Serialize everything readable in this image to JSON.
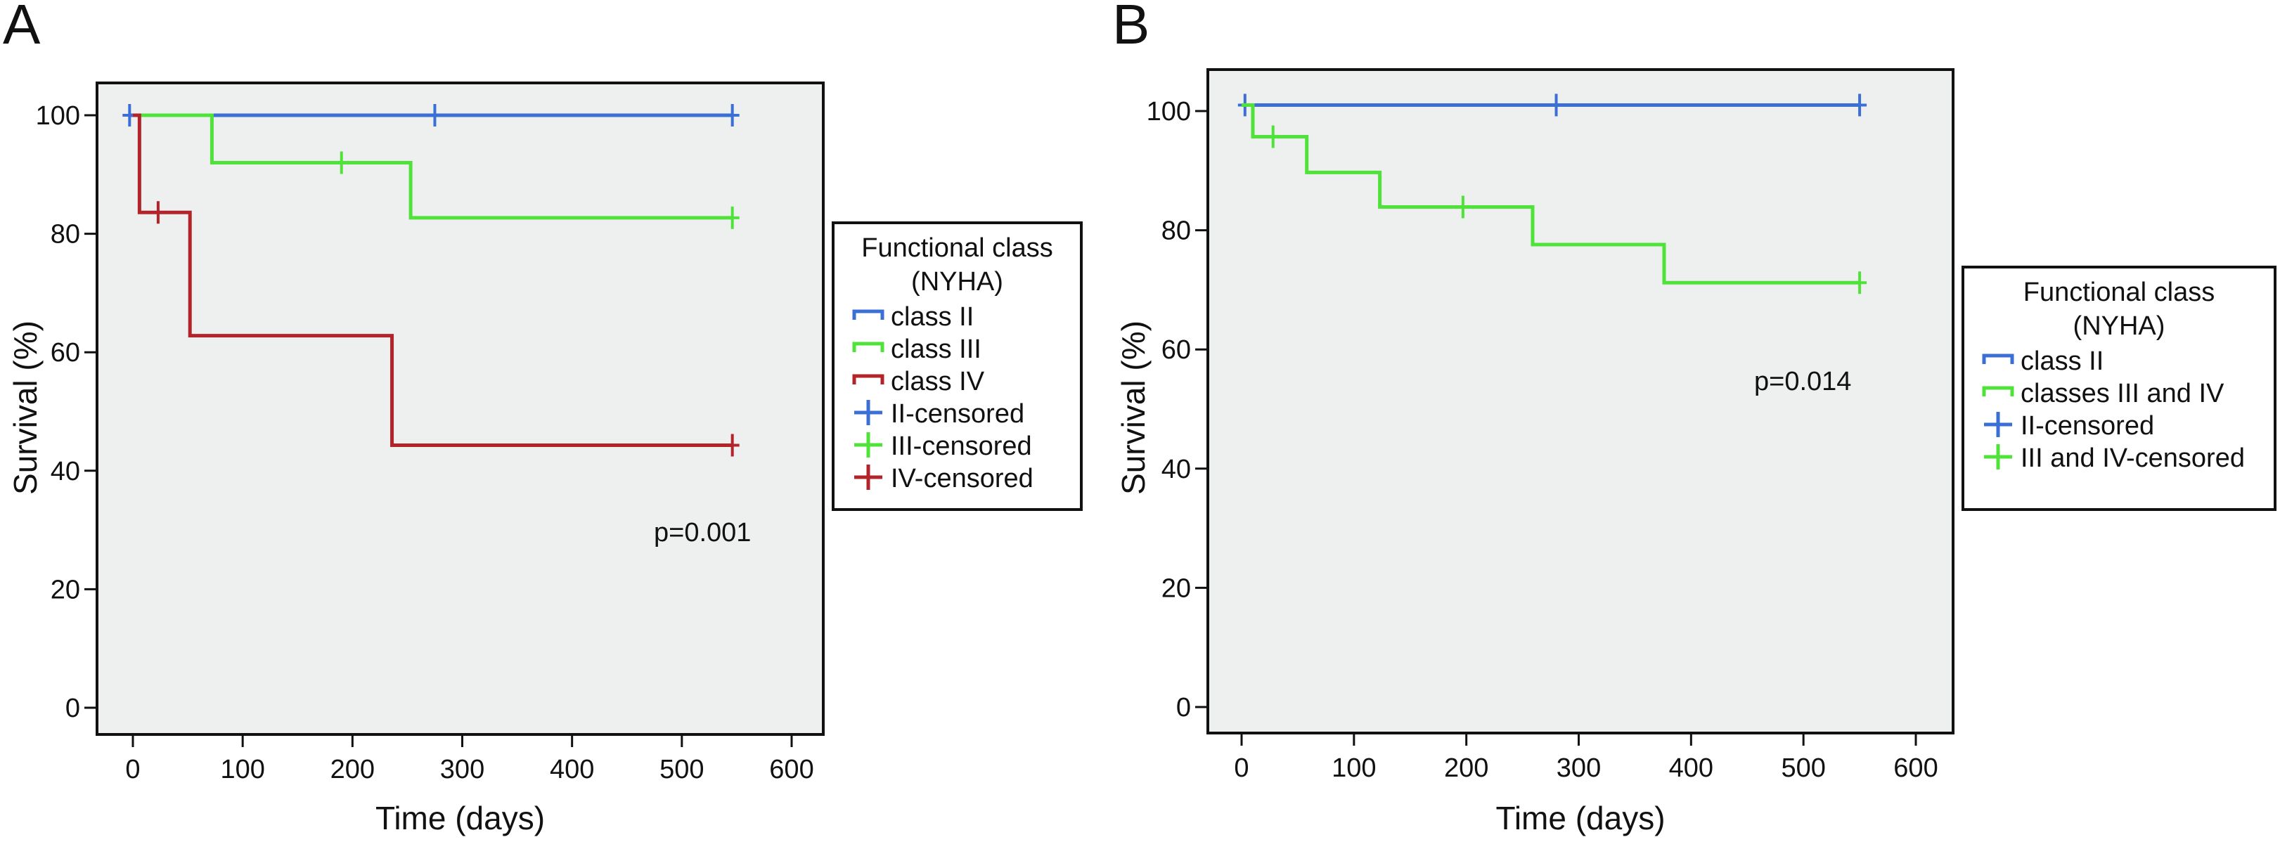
{
  "chart_data": [
    {
      "panel_label": "A",
      "type": "line",
      "step": true,
      "xlabel": "Time (days)",
      "ylabel": "Survival (%)",
      "xlim": [
        -30,
        630
      ],
      "ylim": [
        -8,
        106
      ],
      "xticks": [
        0,
        100,
        200,
        300,
        400,
        500,
        600
      ],
      "yticks": [
        0,
        20,
        40,
        60,
        80,
        100
      ],
      "grid": false,
      "background": "#eef0ef",
      "annotation": "p=0.001",
      "legend": {
        "title": [
          "Functional class",
          "(NYHA)"
        ],
        "placement": "right",
        "entries": [
          {
            "label": "class II",
            "kind": "line",
            "color": "#3b6fd6"
          },
          {
            "label": "class III",
            "kind": "line",
            "color": "#4fe33a"
          },
          {
            "label": "class IV",
            "kind": "line",
            "color": "#b3232a"
          },
          {
            "label": "II-censored",
            "kind": "censor",
            "color": "#3b6fd6"
          },
          {
            "label": "III-censored",
            "kind": "censor",
            "color": "#4fe33a"
          },
          {
            "label": "IV-censored",
            "kind": "censor",
            "color": "#b3232a"
          }
        ]
      },
      "series": [
        {
          "name": "class II",
          "color": "#3b6fd6",
          "x": [
            -3,
            546
          ],
          "y": [
            100,
            100
          ],
          "censored": [
            [
              -3,
              100
            ],
            [
              275,
              100
            ],
            [
              546,
              100
            ]
          ]
        },
        {
          "name": "class III",
          "color": "#4fe33a",
          "x": [
            0,
            72,
            253,
            546
          ],
          "y": [
            100,
            92,
            82.7,
            82.7
          ],
          "censored": [
            [
              190,
              92
            ],
            [
              546,
              82.7
            ]
          ]
        },
        {
          "name": "class IV",
          "color": "#b3232a",
          "x": [
            0,
            6,
            52,
            236,
            546
          ],
          "y": [
            100,
            83.6,
            62.8,
            44.3,
            44.3
          ],
          "censored": [
            [
              23,
              83.6
            ],
            [
              546,
              44.3
            ]
          ]
        }
      ]
    },
    {
      "panel_label": "B",
      "type": "line",
      "step": true,
      "xlabel": "Time (days)",
      "ylabel": "Survival (%)",
      "xlim": [
        -30,
        630
      ],
      "ylim": [
        -8,
        106
      ],
      "xticks": [
        0,
        100,
        200,
        300,
        400,
        500,
        600
      ],
      "yticks": [
        0,
        20,
        40,
        60,
        80,
        100
      ],
      "grid": false,
      "background": "#eef0ef",
      "annotation": "p=0.014",
      "legend": {
        "title": [
          "Functional class",
          "(NYHA)"
        ],
        "placement": "right",
        "entries": [
          {
            "label": "class II",
            "kind": "line",
            "color": "#3b6fd6"
          },
          {
            "label": "classes III and IV",
            "kind": "line",
            "color": "#4fe33a"
          },
          {
            "label": "II-censored",
            "kind": "censor",
            "color": "#3b6fd6"
          },
          {
            "label": "III and IV-censored",
            "kind": "censor",
            "color": "#4fe33a"
          }
        ]
      },
      "series": [
        {
          "name": "class II",
          "color": "#3b6fd6",
          "x": [
            3,
            550
          ],
          "y": [
            101,
            101
          ],
          "censored": [
            [
              3,
              101
            ],
            [
              280,
              101
            ],
            [
              550,
              101
            ]
          ]
        },
        {
          "name": "classes III and IV",
          "color": "#4fe33a",
          "x": [
            0,
            10,
            58,
            123,
            259,
            376,
            550
          ],
          "y": [
            101,
            95.7,
            89.7,
            83.9,
            77.6,
            71.2,
            71.2
          ],
          "censored": [
            [
              28,
              95.7
            ],
            [
              197,
              83.9
            ],
            [
              550,
              71.2
            ]
          ]
        }
      ]
    }
  ]
}
